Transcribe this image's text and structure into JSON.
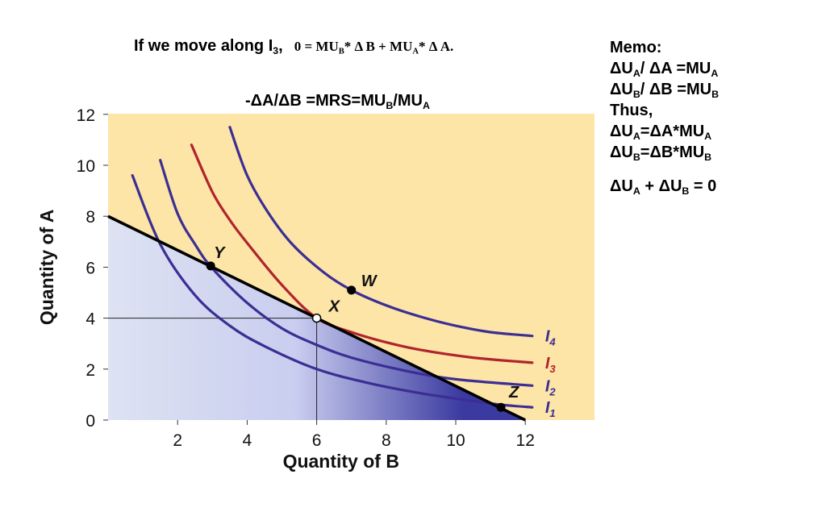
{
  "header": {
    "move_prefix": "If we move along I",
    "move_sub": "3",
    "move_suffix": ",",
    "eq_lhs": "0 = MU",
    "eq_mu_b_sub": "B",
    "eq_mid": "* Δ B + MU",
    "eq_mu_a_sub": "A",
    "eq_rhs": "* Δ A.",
    "mrs_p1": "-ΔA/ΔB =MRS=MU",
    "mrs_sub1": "B",
    "mrs_p2": "/MU",
    "mrs_sub2": "A"
  },
  "memo": {
    "title": "Memo:",
    "l1": {
      "a": "ΔU",
      "as": "A",
      "b": "/ ΔA =MU",
      "bs": "A"
    },
    "l2": {
      "a": "ΔU",
      "as": "B",
      "b": "/ ΔB =MU",
      "bs": "B"
    },
    "l3": "Thus,",
    "l4": {
      "a": "ΔU",
      "as": "A",
      "b": "=ΔA*MU",
      "bs": "A"
    },
    "l5": {
      "a": "ΔU",
      "as": "B",
      "b": "=ΔB*MU",
      "bs": "B"
    },
    "l6": {
      "a": "ΔU",
      "as": "A",
      "b": " + ΔU",
      "bs": "B",
      "c": " = 0"
    }
  },
  "chart_data": {
    "type": "line",
    "xlabel": "Quantity of B",
    "ylabel": "Quantity of A",
    "xlim": [
      0,
      13.4
    ],
    "ylim": [
      0,
      12
    ],
    "xticks": [
      2,
      4,
      6,
      8,
      10,
      12
    ],
    "yticks": [
      0,
      2,
      4,
      6,
      8,
      10,
      12
    ],
    "grid": false,
    "colors": {
      "background": "#fde4a7",
      "budget_line": "#000000",
      "budget_fill": "#dde3f2",
      "budget_fill_dark": "#3a3aa0",
      "indifference": "#3b2e94",
      "indifference_highlight": "#b0242c",
      "curve_label": "#3b2e94",
      "curve_label_highlight": "#b0242c"
    },
    "budget_line": {
      "x": [
        0,
        12
      ],
      "y": [
        8,
        0
      ]
    },
    "series": [
      {
        "name": "I",
        "sub": "1",
        "x": [
          0.7,
          1.5,
          2.5,
          3.5,
          4.5,
          6,
          7.5,
          9,
          10.5,
          11.3,
          12.2
        ],
        "y": [
          9.6,
          6.9,
          4.9,
          3.7,
          2.9,
          2.0,
          1.45,
          1.05,
          0.75,
          0.6,
          0.5
        ]
      },
      {
        "name": "I",
        "sub": "2",
        "x": [
          1.5,
          2.0,
          2.5,
          3.0,
          4.0,
          5.0,
          6.0,
          7.0,
          8.5,
          10.0,
          12.2
        ],
        "y": [
          10.2,
          8.1,
          6.9,
          5.95,
          4.6,
          3.6,
          2.95,
          2.45,
          1.95,
          1.6,
          1.35
        ]
      },
      {
        "name": "I",
        "sub": "3",
        "x": [
          2.4,
          3.0,
          3.5,
          4.0,
          5.0,
          6.0,
          7.0,
          8.0,
          9.0,
          10.5,
          12.2
        ],
        "y": [
          10.8,
          8.95,
          7.85,
          6.95,
          5.3,
          4.0,
          3.45,
          3.05,
          2.75,
          2.45,
          2.25
        ]
      },
      {
        "name": "I",
        "sub": "4",
        "x": [
          3.5,
          4.0,
          4.6,
          5.3,
          6.2,
          7.0,
          8.0,
          9.0,
          10.0,
          11.0,
          12.2
        ],
        "y": [
          11.5,
          9.6,
          8.15,
          6.9,
          5.8,
          5.1,
          4.5,
          4.05,
          3.7,
          3.45,
          3.3
        ]
      }
    ],
    "points": [
      {
        "label": "Y",
        "x": 2.95,
        "y": 6.05,
        "style": "solid"
      },
      {
        "label": "X",
        "x": 6,
        "y": 4,
        "style": "hollow"
      },
      {
        "label": "W",
        "x": 7,
        "y": 5.1,
        "style": "solid"
      },
      {
        "label": "Z",
        "x": 11.3,
        "y": 0.5,
        "style": "solid"
      }
    ],
    "guide": {
      "x": 6,
      "y": 4
    }
  }
}
